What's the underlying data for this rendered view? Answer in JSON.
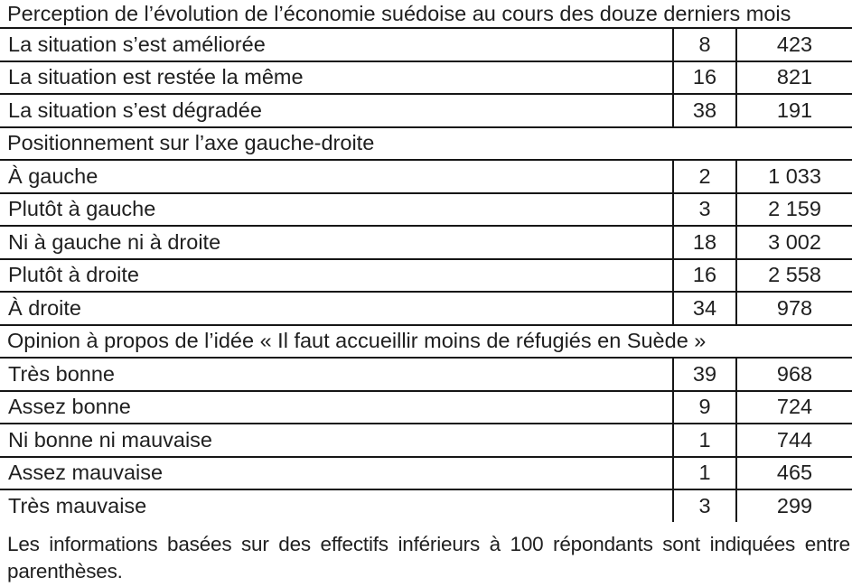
{
  "colors": {
    "background": "#ffffff",
    "text": "#1f1f1f",
    "line": "#161616"
  },
  "sections": [
    {
      "title": "Perception de l’évolution de l’économie suédoise au cours des douze derniers mois",
      "rows": [
        {
          "label": "La situation s’est améliorée",
          "percent": "8",
          "count": "423"
        },
        {
          "label": "La situation est restée la même",
          "percent": "16",
          "count": "821"
        },
        {
          "label": "La situation s’est dégradée",
          "percent": "38",
          "count": "191"
        }
      ]
    },
    {
      "title": "Positionnement sur l’axe gauche-droite",
      "rows": [
        {
          "label": "À gauche",
          "percent": "2",
          "count": "1 033"
        },
        {
          "label": "Plutôt à gauche",
          "percent": "3",
          "count": "2 159"
        },
        {
          "label": "Ni à gauche ni à droite",
          "percent": "18",
          "count": "3 002"
        },
        {
          "label": "Plutôt à droite",
          "percent": "16",
          "count": "2 558"
        },
        {
          "label": "À droite",
          "percent": "34",
          "count": "978"
        }
      ]
    },
    {
      "title": "Opinion à propos de l’idée « Il faut accueillir moins de réfugiés en Suède »",
      "rows": [
        {
          "label": "Très bonne",
          "percent": "39",
          "count": "968"
        },
        {
          "label": "Assez bonne",
          "percent": "9",
          "count": "724"
        },
        {
          "label": "Ni bonne ni mauvaise",
          "percent": "1",
          "count": "744"
        },
        {
          "label": "Assez mauvaise",
          "percent": "1",
          "count": "465"
        },
        {
          "label": "Très mauvaise",
          "percent": "3",
          "count": "299"
        }
      ]
    }
  ],
  "footnote": "Les informations basées sur des effectifs inférieurs à 100 répondants sont indiquées entre parenthèses."
}
